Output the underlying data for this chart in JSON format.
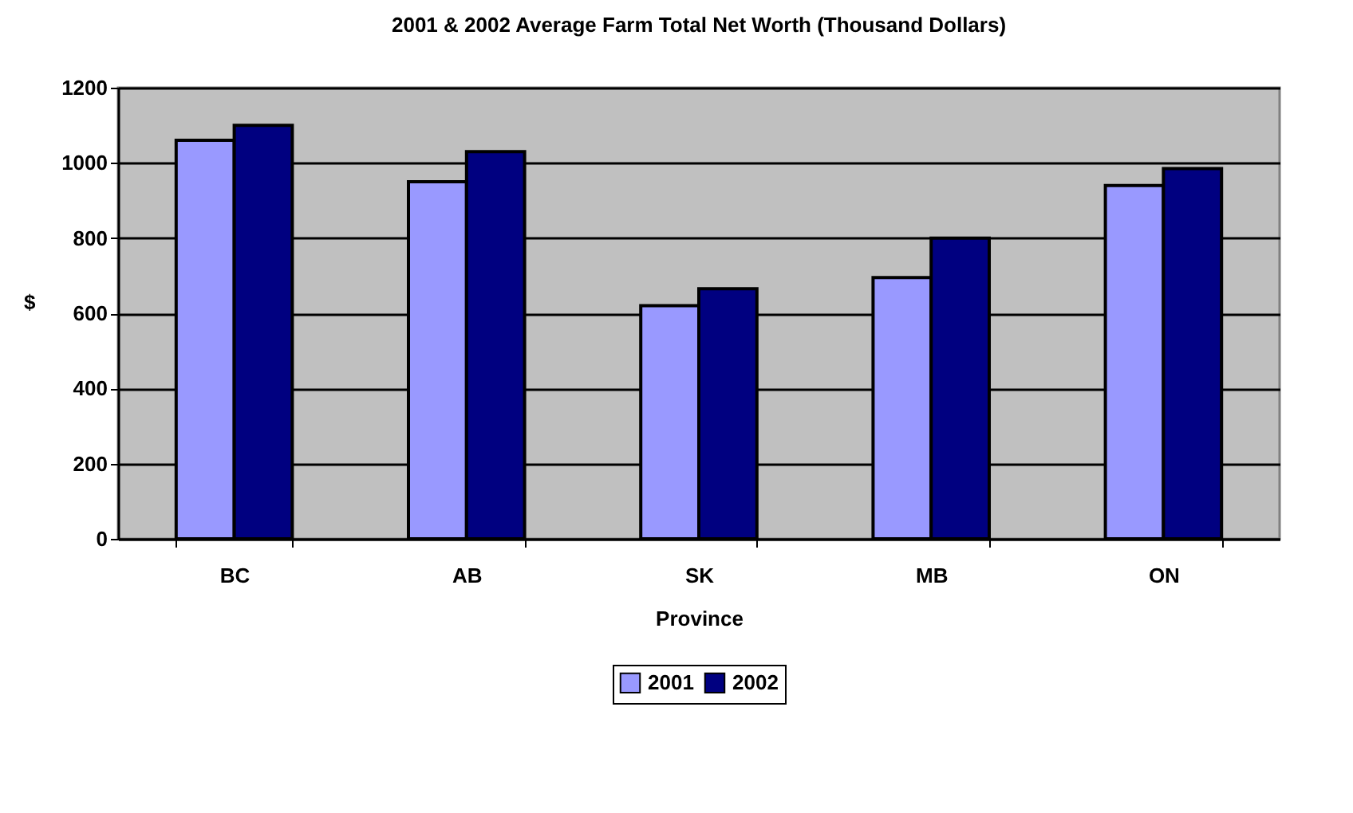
{
  "chart_data": {
    "type": "bar",
    "title": "2001 & 2002 Average Farm Total Net Worth (Thousand Dollars)",
    "xlabel": "Province",
    "ylabel": "$",
    "categories": [
      "BC",
      "AB",
      "SK",
      "MB",
      "ON"
    ],
    "series": [
      {
        "name": "2001",
        "color": "#9999ff",
        "values": [
          1060,
          950,
          620,
          695,
          940
        ]
      },
      {
        "name": "2002",
        "color": "#000080",
        "values": [
          1100,
          1030,
          665,
          800,
          985
        ]
      }
    ],
    "ylim": [
      0,
      1200
    ],
    "yticks": [
      0,
      200,
      400,
      600,
      800,
      1000,
      1200
    ],
    "grid": "y",
    "legend": "bottom"
  }
}
